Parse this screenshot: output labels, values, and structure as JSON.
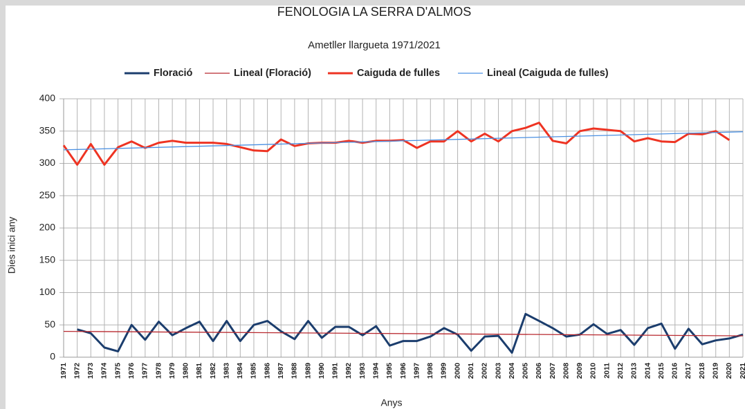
{
  "chart_data": {
    "type": "line",
    "title": "FENOLOGIA LA SERRA D'ALMOS",
    "subtitle": "Ametller llargueta 1971/2021",
    "x_label": "Anys",
    "y_label": "Dies inici any",
    "categories": [
      "1971",
      "1972",
      "1973",
      "1974",
      "1975",
      "1976",
      "1977",
      "1978",
      "1979",
      "1980",
      "1981",
      "1982",
      "1983",
      "1984",
      "1985",
      "1986",
      "1987",
      "1988",
      "1989",
      "1990",
      "1991",
      "1992",
      "1993",
      "1994",
      "1995",
      "1996",
      "1997",
      "1998",
      "1999",
      "2000",
      "2001",
      "2002",
      "2003",
      "2004",
      "2005",
      "2006",
      "2007",
      "2008",
      "2009",
      "2010",
      "2011",
      "2012",
      "2013",
      "2014",
      "2015",
      "2016",
      "2017",
      "2018",
      "2019",
      "2020",
      "2021"
    ],
    "series": [
      {
        "name": "Floració",
        "color": "#1b3d6d",
        "width": 3,
        "values": [
          null,
          43,
          37,
          15,
          9,
          50,
          27,
          55,
          34,
          45,
          55,
          25,
          56,
          25,
          50,
          56,
          40,
          28,
          56,
          30,
          47,
          47,
          34,
          48,
          18,
          25,
          25,
          32,
          45,
          35,
          10,
          32,
          33,
          7,
          67,
          56,
          45,
          32,
          35,
          51,
          36,
          42,
          19,
          45,
          52,
          13,
          44,
          20,
          26,
          29,
          35
        ]
      },
      {
        "name": "Lineal (Floració)",
        "color": "#b8282e",
        "width": 1.3,
        "x": [
          "1971",
          "2021"
        ],
        "values": [
          40,
          33
        ]
      },
      {
        "name": "Caiguda de fulles",
        "color": "#ee3322",
        "width": 3,
        "values": [
          328,
          298,
          330,
          298,
          325,
          334,
          324,
          332,
          335,
          332,
          332,
          332,
          330,
          325,
          320,
          319,
          337,
          327,
          331,
          332,
          332,
          335,
          332,
          335,
          335,
          336,
          324,
          334,
          334,
          350,
          334,
          346,
          334,
          350,
          355,
          363,
          335,
          331,
          350,
          354,
          352,
          350,
          334,
          339,
          334,
          333,
          346,
          345,
          350,
          336,
          null
        ]
      },
      {
        "name": "Lineal (Caiguda de fulles)",
        "color": "#4a90e2",
        "width": 1.3,
        "x": [
          "1971",
          "2021"
        ],
        "values": [
          321,
          349
        ]
      }
    ],
    "ylim": [
      0,
      400
    ],
    "yticks": [
      0,
      50,
      100,
      150,
      200,
      250,
      300,
      350,
      400
    ],
    "grid": true
  }
}
